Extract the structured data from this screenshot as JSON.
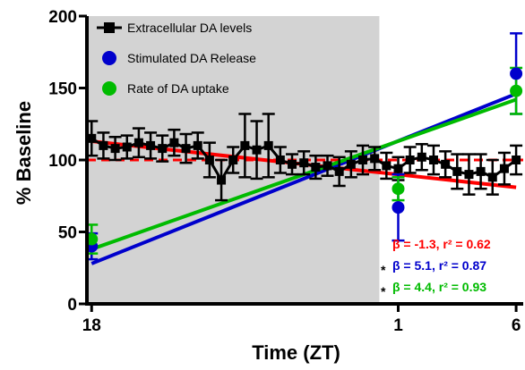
{
  "chart_data": {
    "type": "line",
    "xlabel": "Time (ZT)",
    "ylabel": "% Baseline",
    "x_tick_labels": [
      {
        "x": 18,
        "label": "18"
      },
      {
        "x": 31,
        "label": "1"
      },
      {
        "x": 36,
        "label": "6"
      }
    ],
    "xlim": [
      17.8,
      36.3
    ],
    "ylim": [
      0,
      200
    ],
    "y_ticks": [
      0,
      50,
      100,
      150,
      200
    ],
    "shaded_region": {
      "x_from": 17.8,
      "x_to": 30.2,
      "color": "#d3d3d3"
    },
    "reference_line": {
      "y": 100,
      "color": "#ff0000",
      "style": "dashed"
    },
    "series": [
      {
        "name": "Extracellular DA levels",
        "color": "#000000",
        "marker": "square",
        "x": [
          18,
          18.5,
          19,
          19.5,
          20,
          20.5,
          21,
          21.5,
          22,
          22.5,
          23,
          23.5,
          24,
          24.5,
          25,
          25.5,
          26,
          26.5,
          27,
          27.5,
          28,
          28.5,
          29,
          29.5,
          30,
          30.5,
          31,
          31.5,
          32,
          32.5,
          33,
          33.5,
          34,
          34.5,
          35,
          35.5,
          36
        ],
        "values": [
          115,
          110,
          108,
          109,
          112,
          110,
          108,
          112,
          108,
          110,
          100,
          86,
          100,
          110,
          107,
          110,
          100,
          97,
          98,
          95,
          96,
          92,
          97,
          100,
          101,
          96,
          94,
          100,
          102,
          100,
          97,
          92,
          90,
          92,
          88,
          94,
          100
        ],
        "error": [
          12,
          9,
          8,
          8,
          10,
          9,
          9,
          9,
          10,
          9,
          12,
          14,
          9,
          22,
          20,
          22,
          9,
          7,
          8,
          8,
          7,
          10,
          9,
          10,
          8,
          9,
          8,
          9,
          9,
          10,
          9,
          12,
          14,
          12,
          12,
          11,
          10
        ]
      },
      {
        "name": "Stimulated DA Release",
        "color": "#0000cc",
        "marker": "circle",
        "x": [
          18,
          31,
          36
        ],
        "values": [
          40,
          67,
          160
        ],
        "error": [
          9,
          23,
          28
        ]
      },
      {
        "name": "Rate of  DA uptake",
        "color": "#00bb00",
        "marker": "circle",
        "x": [
          18,
          31,
          36
        ],
        "values": [
          45,
          80,
          148
        ],
        "error": [
          10,
          8,
          16
        ]
      }
    ],
    "regression_lines": [
      {
        "color": "#ff0000",
        "x": [
          18,
          36
        ],
        "values": [
          113,
          81
        ]
      },
      {
        "color": "#0000cc",
        "x": [
          18,
          36
        ],
        "values": [
          28,
          146
        ]
      },
      {
        "color": "#00bb00",
        "x": [
          18,
          36
        ],
        "values": [
          38,
          142
        ]
      }
    ],
    "stats": [
      {
        "text": "β = -1.3, r² = 0.62",
        "color": "#ff0000",
        "asterisk": ""
      },
      {
        "text": "β =  5.1, r² = 0.87",
        "color": "#0000cc",
        "asterisk": "*"
      },
      {
        "text": "β = 4.4, r² = 0.93",
        "color": "#00bb00",
        "asterisk": "*"
      }
    ]
  }
}
